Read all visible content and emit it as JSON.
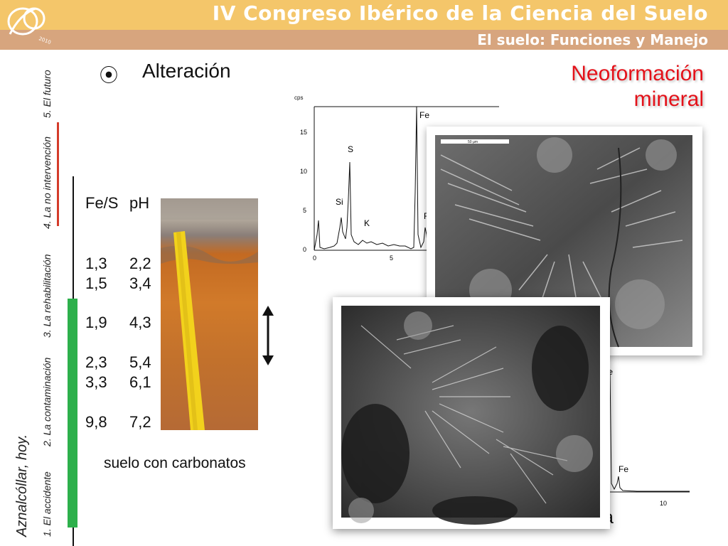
{
  "header": {
    "title": "IV Congreso Ibérico de la Ciencia del Suelo",
    "subtitle": "El suelo: Funciones y Manejo",
    "logo_year": "2010"
  },
  "sidebar": {
    "place": "Aznalcóllar, hoy.",
    "items": [
      "1. El accidente",
      "2. La contaminación",
      "3. La rehabilitación",
      "4. La no intervención",
      "5. El futuro"
    ],
    "active_index": 3
  },
  "main": {
    "bullet": "⦿",
    "heading": "Alteración",
    "side_title_line1": "Neoformación",
    "side_title_line2": "mineral",
    "table": {
      "headers": [
        "Fe/S",
        "pH"
      ],
      "rows": [
        [
          "1,3",
          "2,2"
        ],
        [
          "1,5",
          "3,4"
        ],
        [
          "1,9",
          "4,3"
        ],
        [
          "2,3",
          "5,4"
        ],
        [
          "3,3",
          "6,1"
        ],
        [
          "9,8",
          "7,2"
        ]
      ]
    },
    "caption": "suelo con carbonatos",
    "bottom_text": "osita"
  },
  "spectrum1": {
    "y_unit": "cps",
    "y_ticks": [
      "15",
      "10",
      "5",
      "0"
    ],
    "x_ticks": [
      "0",
      "5"
    ],
    "peaks": [
      "Si",
      "S",
      "K",
      "Fe",
      "F"
    ]
  },
  "spectrum2": {
    "peaks": [
      "Fe",
      "Fe"
    ],
    "x_ticks": [
      "10"
    ]
  },
  "sem1": {
    "scale_label": "50 µm"
  },
  "colors": {
    "header_top": "#f4c66a",
    "header_bottom": "#d7a57e",
    "accent_red": "#e4121a",
    "nav_active": "#d43b2a",
    "nav_green": "#2db04b"
  }
}
